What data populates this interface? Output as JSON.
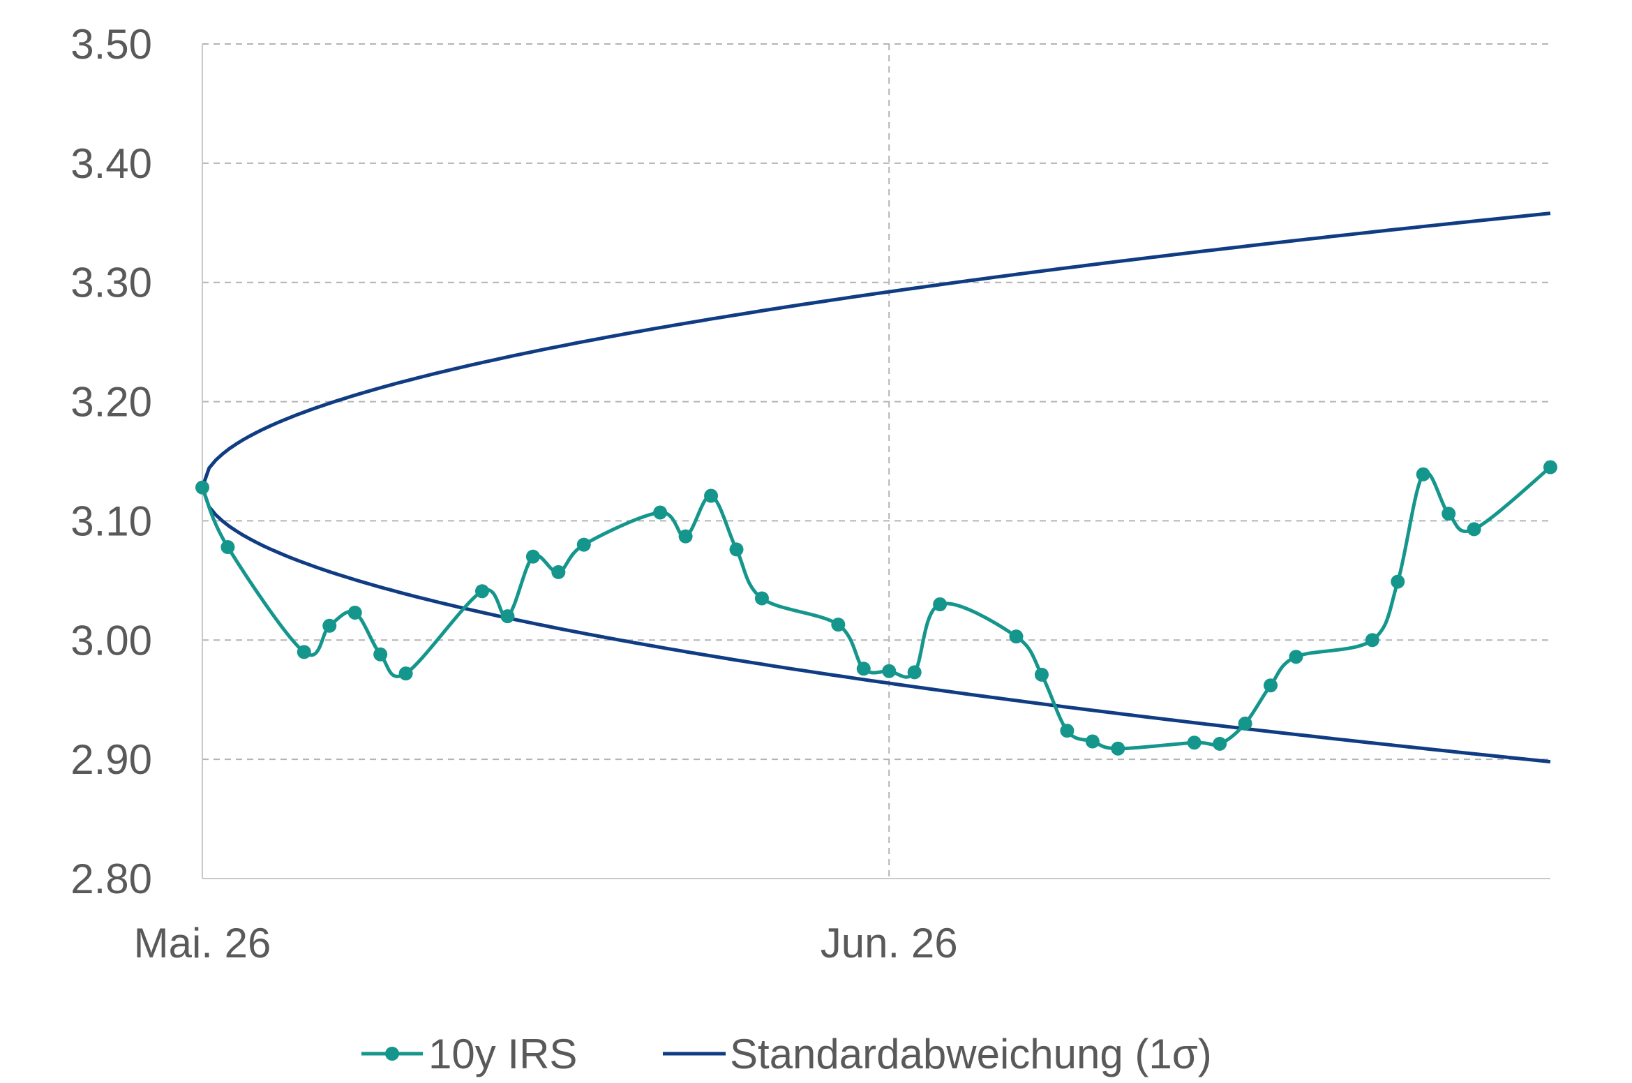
{
  "chart_data": {
    "type": "line",
    "y_ticks": [
      "3.50",
      "3.40",
      "3.30",
      "3.20",
      "3.10",
      "3.00",
      "2.90",
      "2.80"
    ],
    "ylim": [
      2.8,
      3.5
    ],
    "x_ticks": [
      "Mai. 26",
      "Jun. 26"
    ],
    "grid": "dashed",
    "legend_position": "bottom",
    "colors": {
      "irs": "#14968c",
      "sigma": "#0f3c82",
      "grid": "#b4b4b4",
      "axis": "#c8c8c8",
      "text": "#595959"
    },
    "series": [
      {
        "name": "10y IRS",
        "marker": "circle",
        "x": [
          0,
          1,
          4,
          5,
          6,
          7,
          8,
          11,
          12,
          13,
          14,
          15,
          18,
          19,
          20,
          21,
          22,
          25,
          26,
          27,
          28,
          29,
          32,
          33,
          34,
          35,
          36,
          39,
          40,
          41,
          42,
          43,
          46,
          47,
          48,
          49,
          50,
          53
        ],
        "values": [
          3.128,
          3.078,
          2.99,
          3.012,
          3.023,
          2.988,
          2.972,
          3.041,
          3.02,
          3.07,
          3.057,
          3.08,
          3.107,
          3.087,
          3.121,
          3.076,
          3.035,
          3.013,
          2.976,
          2.974,
          2.973,
          3.03,
          3.003,
          2.971,
          2.924,
          2.915,
          2.909,
          2.914,
          2.913,
          2.93,
          2.962,
          2.986,
          3.0,
          3.049,
          3.139,
          3.106,
          3.093,
          3.145
        ]
      },
      {
        "name": "Standardabweichung (1σ)",
        "start_value": 3.128,
        "end_upper": 3.358,
        "end_lower": 2.898
      }
    ]
  }
}
